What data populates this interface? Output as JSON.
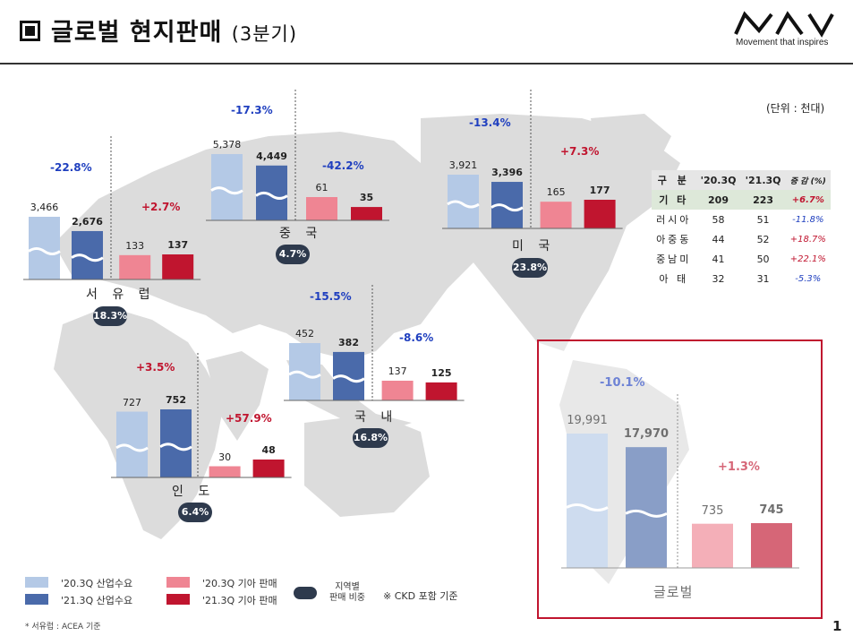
{
  "header": {
    "title": "글로벌 현지판매",
    "title_sub": "(3분기)",
    "logo_tagline": "Movement that inspires"
  },
  "unit_label": "(단위 : 천대)",
  "colors": {
    "industry_2020": "#b4c9e6",
    "industry_2021": "#4a6aaa",
    "kia_2020": "#ef8593",
    "kia_2021": "#c0152f",
    "negative": "#1f3fbf",
    "positive": "#c0152f",
    "map": "#d9d9d9",
    "global_box": "#c0152f"
  },
  "chart_data": [
    {
      "type": "bar",
      "region": "서 유 럽",
      "share": "18.3%",
      "categories": [
        "'20.3Q 산업수요",
        "'21.3Q 산업수요",
        "'20.3Q 기아 판매",
        "'21.3Q 기아 판매"
      ],
      "value_labels": [
        "3,466",
        "2,676",
        "133",
        "137"
      ],
      "industry_values": [
        3466,
        2676
      ],
      "kia_values": [
        133,
        137
      ],
      "industry_change": "-22.8%",
      "kia_change": "+2.7%"
    },
    {
      "type": "bar",
      "region": "중 국",
      "share": "4.7%",
      "categories": [
        "'20.3Q 산업수요",
        "'21.3Q 산업수요",
        "'20.3Q 기아 판매",
        "'21.3Q 기아 판매"
      ],
      "value_labels": [
        "5,378",
        "4,449",
        "61",
        "35"
      ],
      "industry_values": [
        5378,
        4449
      ],
      "kia_values": [
        61,
        35
      ],
      "industry_change": "-17.3%",
      "kia_change": "-42.2%"
    },
    {
      "type": "bar",
      "region": "미 국",
      "share": "23.8%",
      "categories": [
        "'20.3Q 산업수요",
        "'21.3Q 산업수요",
        "'20.3Q 기아 판매",
        "'21.3Q 기아 판매"
      ],
      "value_labels": [
        "3,921",
        "3,396",
        "165",
        "177"
      ],
      "industry_values": [
        3921,
        3396
      ],
      "kia_values": [
        165,
        177
      ],
      "industry_change": "-13.4%",
      "kia_change": "+7.3%"
    },
    {
      "type": "bar",
      "region": "국 내",
      "share": "16.8%",
      "categories": [
        "'20.3Q 산업수요",
        "'21.3Q 산업수요",
        "'20.3Q 기아 판매",
        "'21.3Q 기아 판매"
      ],
      "value_labels": [
        "452",
        "382",
        "137",
        "125"
      ],
      "industry_values": [
        452,
        382
      ],
      "kia_values": [
        137,
        125
      ],
      "industry_change": "-15.5%",
      "kia_change": "-8.6%"
    },
    {
      "type": "bar",
      "region": "인 도",
      "share": "6.4%",
      "categories": [
        "'20.3Q 산업수요",
        "'21.3Q 산업수요",
        "'20.3Q 기아 판매",
        "'21.3Q 기아 판매"
      ],
      "value_labels": [
        "727",
        "752",
        "30",
        "48"
      ],
      "industry_values": [
        727,
        752
      ],
      "kia_values": [
        30,
        48
      ],
      "industry_change": "+3.5%",
      "kia_change": "+57.9%"
    },
    {
      "type": "bar",
      "region": "글로벌",
      "categories": [
        "'20.3Q 산업수요",
        "'21.3Q 산업수요",
        "'20.3Q 기아 판매",
        "'21.3Q 기아 판매"
      ],
      "value_labels": [
        "19,991",
        "17,970",
        "735",
        "745"
      ],
      "industry_values": [
        19991,
        17970
      ],
      "kia_values": [
        735,
        745
      ],
      "industry_change": "-10.1%",
      "kia_change": "+1.3%"
    }
  ],
  "table": {
    "headers": [
      "구 분",
      "'20.3Q",
      "'21.3Q",
      "증 감 (%)"
    ],
    "rows": [
      {
        "label": "기 타",
        "q20": "209",
        "q21": "223",
        "delta": "+6.7%",
        "kind": "kia"
      },
      {
        "label": "러시아",
        "q20": "58",
        "q21": "51",
        "delta": "-11.8%",
        "kind": "sub"
      },
      {
        "label": "아중동",
        "q20": "44",
        "q21": "52",
        "delta": "+18.7%",
        "kind": "sub"
      },
      {
        "label": "중남미",
        "q20": "41",
        "q21": "50",
        "delta": "+22.1%",
        "kind": "sub"
      },
      {
        "label": "아 태",
        "q20": "32",
        "q21": "31",
        "delta": "-5.3%",
        "kind": "sub"
      }
    ]
  },
  "legend": {
    "industry_2020": "'20.3Q 산업수요",
    "industry_2021": "'21.3Q 산업수요",
    "kia_2020": "'20.3Q 기아 판매",
    "kia_2021": "'21.3Q 기아 판매",
    "share_line1": "지역별",
    "share_line2": "판매 비중",
    "ckd_note": "※ CKD 포함 기준"
  },
  "footnote": "* 서유럽 : ACEA 기준",
  "page_number": "1"
}
